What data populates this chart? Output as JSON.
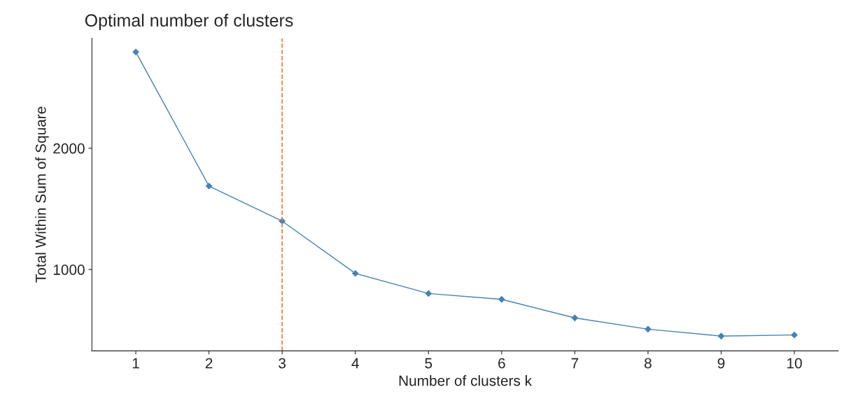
{
  "chart_data": {
    "type": "line",
    "title": "Optimal number of clusters",
    "xlabel": "Number of clusters k",
    "ylabel": "Total Within Sum of Square",
    "categories": [
      "1",
      "2",
      "3",
      "4",
      "5",
      "6",
      "7",
      "8",
      "9",
      "10"
    ],
    "series": [
      {
        "color": "#4682b4",
        "values": [
          2793,
          1688,
          1399,
          968,
          802,
          754,
          601,
          508,
          451,
          460
        ]
      }
    ],
    "ylim": [
      329,
      2908
    ],
    "yticks": [
      1000,
      2000
    ],
    "grid": false,
    "legend": false,
    "marker": "diamond",
    "line_style": "solid",
    "ref_lines": [
      {
        "axis": "x",
        "value": "3",
        "color": "#f0782d",
        "line_style": "dashed"
      }
    ]
  }
}
